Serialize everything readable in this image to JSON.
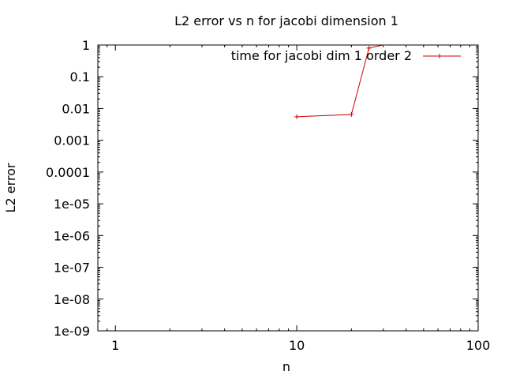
{
  "chart_data": {
    "type": "line",
    "title": "L2 error vs n for jacobi dimension 1",
    "xlabel": "n",
    "ylabel": "L2 error",
    "xscale": "log",
    "yscale": "log",
    "xlim": [
      0.8,
      100
    ],
    "ylim": [
      1e-09,
      1
    ],
    "xticks": [
      {
        "value": 1,
        "label": "1"
      },
      {
        "value": 10,
        "label": "10"
      },
      {
        "value": 100,
        "label": "100"
      }
    ],
    "yticks": [
      {
        "value": 1,
        "label": "1"
      },
      {
        "value": 0.1,
        "label": "0.1"
      },
      {
        "value": 0.01,
        "label": "0.01"
      },
      {
        "value": 0.001,
        "label": "0.001"
      },
      {
        "value": 0.0001,
        "label": "0.0001"
      },
      {
        "value": 1e-05,
        "label": "1e-05"
      },
      {
        "value": 1e-06,
        "label": "1e-06"
      },
      {
        "value": 1e-07,
        "label": "1e-07"
      },
      {
        "value": 1e-08,
        "label": "1e-08"
      },
      {
        "value": 1e-09,
        "label": "1e-09"
      }
    ],
    "grid": false,
    "legend_position": "top-right",
    "series": [
      {
        "name": "time for jacobi dim 1 order 2",
        "color": "#cc0000",
        "marker": "plus",
        "x": [
          10,
          20,
          25,
          30
        ],
        "y": [
          0.0055,
          0.0065,
          0.8,
          1.0
        ]
      }
    ]
  }
}
